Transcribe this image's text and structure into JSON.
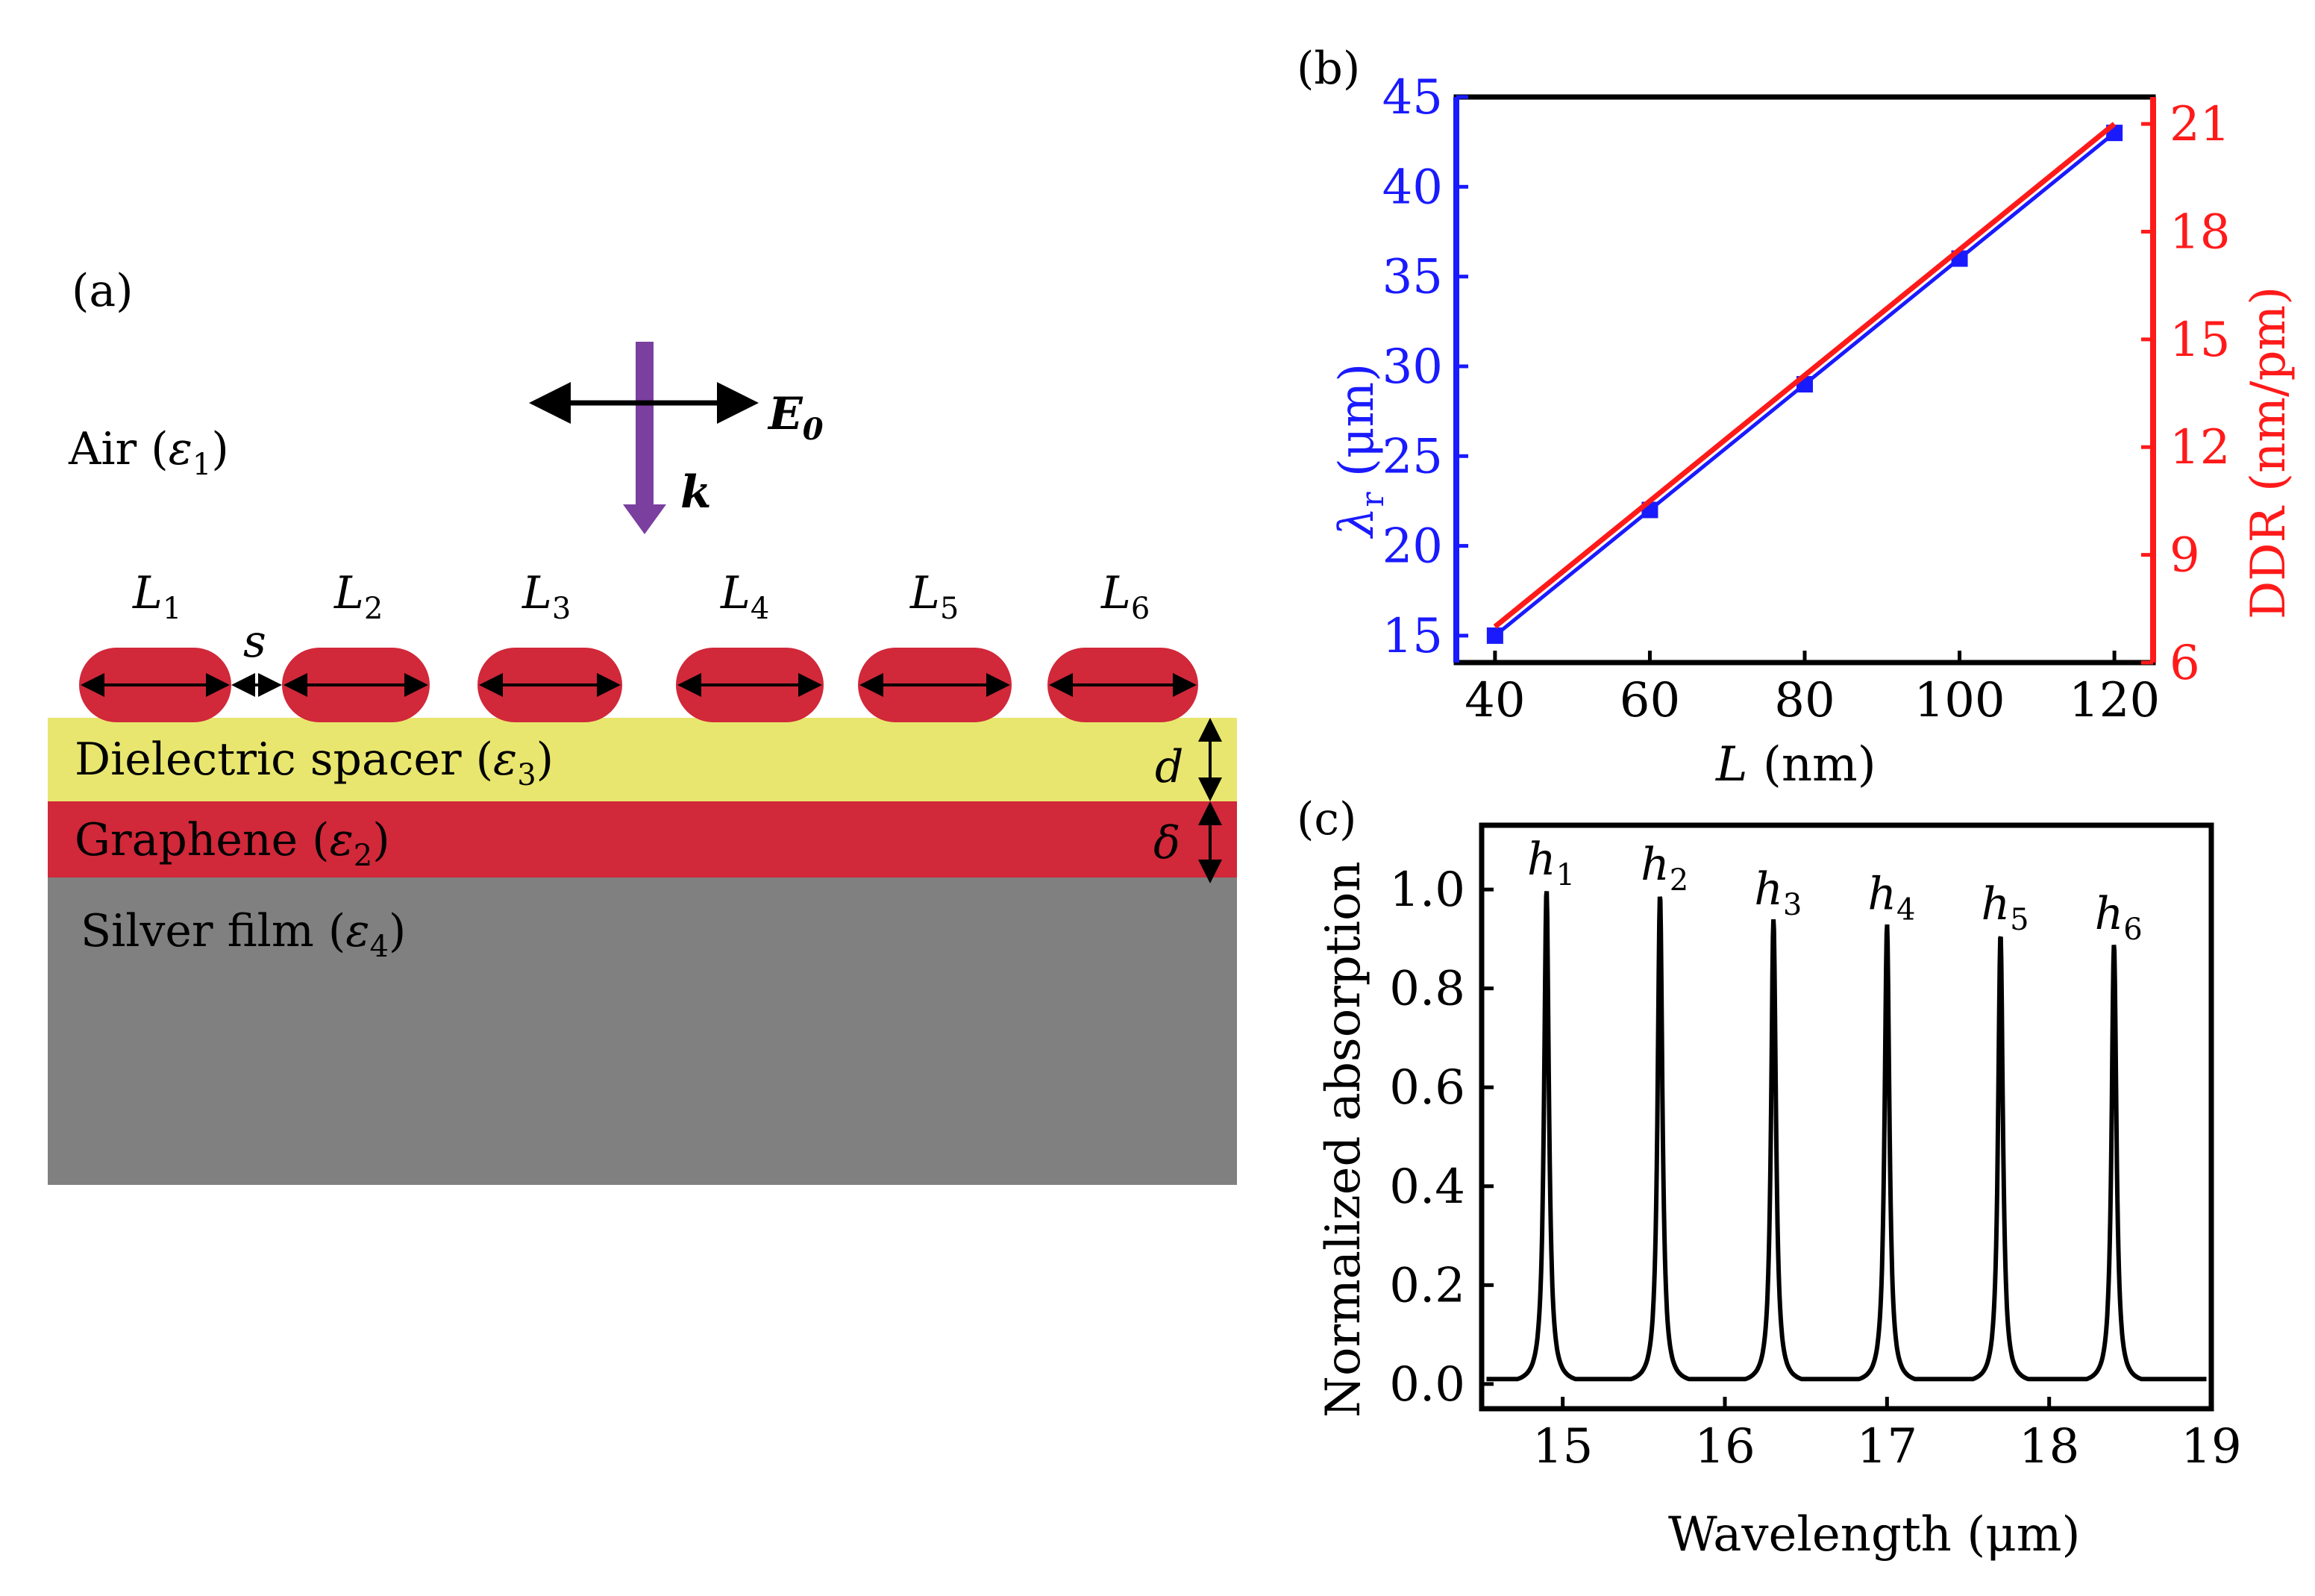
{
  "panel_a": {
    "label": "(a)",
    "air": {
      "text": "Air (",
      "sym": "ε",
      "sub": "1",
      "close": ")"
    },
    "field_E": {
      "sym": "E",
      "sub": "0"
    },
    "wave_k": "k",
    "rods": [
      {
        "sym": "L",
        "sub": "1"
      },
      {
        "sym": "L",
        "sub": "2"
      },
      {
        "sym": "L",
        "sub": "3"
      },
      {
        "sym": "L",
        "sub": "4"
      },
      {
        "sym": "L",
        "sub": "5"
      },
      {
        "sym": "L",
        "sub": "6"
      }
    ],
    "gap_label": "s",
    "spacer": {
      "text": "Dielectric spacer (",
      "sym": "ε",
      "sub": "3",
      "close": ")"
    },
    "graphene": {
      "text": "Graphene (",
      "sym": "ε",
      "sub": "2",
      "close": ")"
    },
    "silver": {
      "text": "Silver film (",
      "sym": "ε",
      "sub": "4",
      "close": ")"
    },
    "d_label": "d",
    "delta_label": "δ",
    "colors": {
      "rod": "#d1283a",
      "spacer": "#e8e66e",
      "graphene": "#d1283a",
      "silver": "#808080",
      "beam": "#7b3fa0"
    }
  },
  "chart_data": [
    {
      "label": "(b)",
      "type": "line",
      "x": [
        40,
        60,
        80,
        100,
        120
      ],
      "series": [
        {
          "name": "λr",
          "axis": "left",
          "color": "#1a1aff",
          "values": [
            15,
            22,
            29,
            36,
            43
          ]
        },
        {
          "name": "DDR",
          "axis": "right",
          "color": "#ff1a1a",
          "values": [
            7,
            10.5,
            14,
            17.5,
            21
          ]
        }
      ],
      "xlabel": {
        "sym": "L",
        "text": " (nm)"
      },
      "ylabel_left": {
        "sym": "λ",
        "sub": "r",
        "text": " (μm)"
      },
      "ylabel_right": "DDR (nm/pm)",
      "xlim": [
        35,
        125
      ],
      "ylim_left": [
        13.5,
        45
      ],
      "ylim_right": [
        6,
        21.75
      ],
      "xticks": [
        "40",
        "60",
        "80",
        "100",
        "120"
      ],
      "yticks_left": [
        "15",
        "20",
        "25",
        "30",
        "35",
        "40",
        "45"
      ],
      "yticks_right": [
        "6",
        "9",
        "12",
        "15",
        "18",
        "21"
      ]
    },
    {
      "label": "(c)",
      "type": "line",
      "peaks": [
        {
          "name": "h",
          "sub": "1",
          "x": 14.9,
          "y": 1.0
        },
        {
          "name": "h",
          "sub": "2",
          "x": 15.6,
          "y": 0.99
        },
        {
          "name": "h",
          "sub": "3",
          "x": 16.3,
          "y": 0.94
        },
        {
          "name": "h",
          "sub": "4",
          "x": 17.0,
          "y": 0.93
        },
        {
          "name": "h",
          "sub": "5",
          "x": 17.7,
          "y": 0.91
        },
        {
          "name": "h",
          "sub": "6",
          "x": 18.4,
          "y": 0.89
        }
      ],
      "baseline": 0.01,
      "xlabel": "Wavelength (μm)",
      "ylabel": "Normalized absorption",
      "xlim": [
        14.5,
        19
      ],
      "ylim": [
        -0.05,
        1.13
      ],
      "xticks": [
        "15",
        "16",
        "17",
        "18",
        "19"
      ],
      "yticks": [
        "0.0",
        "0.2",
        "0.4",
        "0.6",
        "0.8",
        "1.0"
      ],
      "color": "#000000"
    }
  ]
}
